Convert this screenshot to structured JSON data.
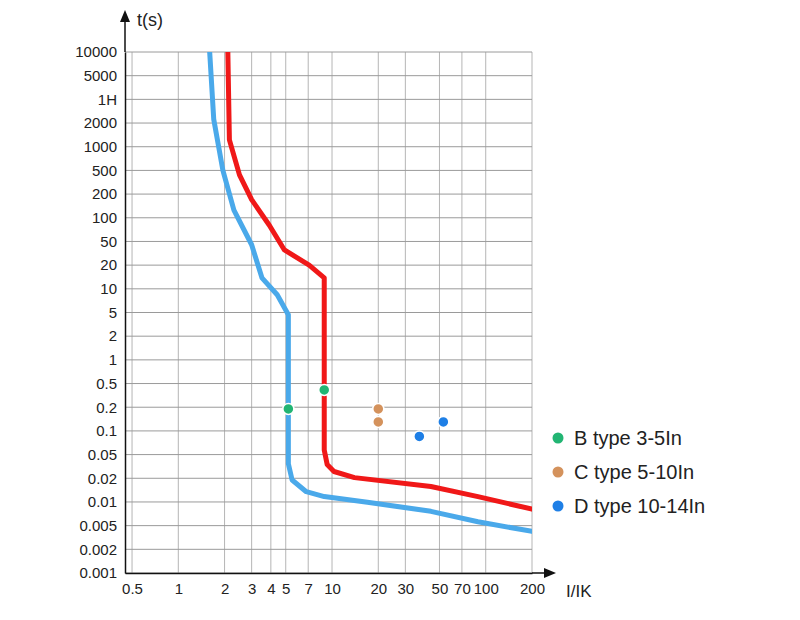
{
  "chart_data": {
    "type": "line",
    "log": true,
    "grid": true,
    "legend": "right",
    "x_label": "I/IK",
    "y_label": "t(s)",
    "xlim": [
      0.45,
      200
    ],
    "xticks": [
      0.5,
      1,
      2,
      3,
      4,
      5,
      7,
      10,
      20,
      30,
      50,
      70,
      100,
      200
    ],
    "ylim": [
      0.001,
      10000
    ],
    "yticks": [
      10000,
      5000,
      {
        "value": 3600,
        "label": "1H"
      },
      2000,
      1000,
      500,
      200,
      100,
      50,
      20,
      10,
      5,
      2,
      1,
      0.5,
      0.2,
      0.1,
      0.05,
      0.02,
      0.01,
      0.005,
      0.002,
      0.001
    ],
    "series": [
      {
        "type": "line",
        "color": "#f01818",
        "x": [
          2.1,
          2.15,
          2.5,
          3,
          3.9,
          4.9,
          7.1,
          8.9,
          8.9,
          9.3,
          10.3,
          14,
          44,
          89,
          200
        ],
        "values": [
          10000,
          1220,
          420,
          170,
          81,
          36,
          20,
          13.8,
          0.057,
          0.034,
          0.026,
          0.0205,
          0.0157,
          0.0117,
          0.0081
        ]
      },
      {
        "type": "line",
        "color": "#4aa9ea",
        "x": [
          1.6,
          1.7,
          1.95,
          2.3,
          3,
          3.5,
          4.4,
          5.2,
          5.2,
          5.5,
          6.8,
          8.9,
          17,
          44,
          89,
          200
        ],
        "values": [
          10000,
          2200,
          500,
          125,
          44,
          13.8,
          8.4,
          4.6,
          0.035,
          0.019,
          0.0135,
          0.0117,
          0.0099,
          0.0076,
          0.0056,
          0.004
        ]
      },
      {
        "type": "scatter",
        "name": "B type 3-5In",
        "color": "#22b573",
        "x": [
          5.2,
          8.9
        ],
        "values": [
          0.19,
          0.39
        ]
      },
      {
        "type": "scatter",
        "name": "C type 5-10In",
        "color": "#d4925c",
        "x": [
          20,
          20
        ],
        "values": [
          0.19,
          0.13
        ]
      },
      {
        "type": "scatter",
        "name": "D type 10-14In",
        "color": "#1e7fe6",
        "x": [
          37,
          53
        ],
        "values": [
          0.085,
          0.13
        ]
      }
    ]
  }
}
